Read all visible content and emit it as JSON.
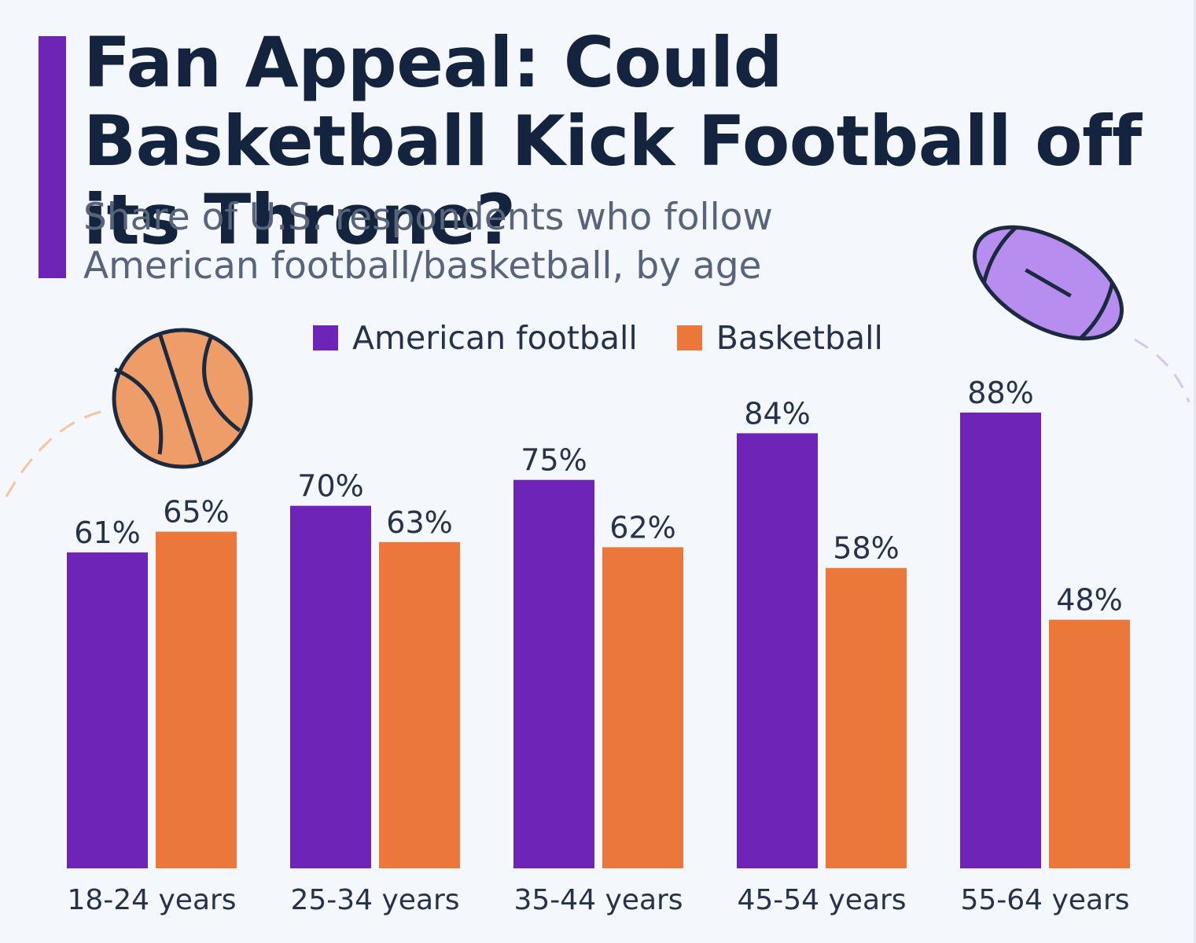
{
  "header": {
    "title": "Fan Appeal: Could Basketball Kick Football off its Throne?",
    "subtitle": "Share of U.S. respondents who follow American football/basketball, by age"
  },
  "colors": {
    "accent": "#6f24b8",
    "football": "#6f24b8",
    "basketball": "#ec773b",
    "text": "#15243e"
  },
  "decorations": {
    "basketball_icon": "basketball-icon",
    "football_icon": "american-football-icon"
  },
  "chart_data": {
    "type": "bar",
    "categories": [
      "18-24 years",
      "25-34 years",
      "35-44 years",
      "45-54 years",
      "55-64 years"
    ],
    "series": [
      {
        "name": "American football",
        "values": [
          61,
          70,
          75,
          84,
          88
        ],
        "color": "#6f24b8"
      },
      {
        "name": "Basketball",
        "values": [
          65,
          63,
          62,
          58,
          48
        ],
        "color": "#ec773b"
      }
    ],
    "value_suffix": "%",
    "ylim": [
      0,
      88
    ],
    "grid": false,
    "legend_position": "top-center"
  }
}
